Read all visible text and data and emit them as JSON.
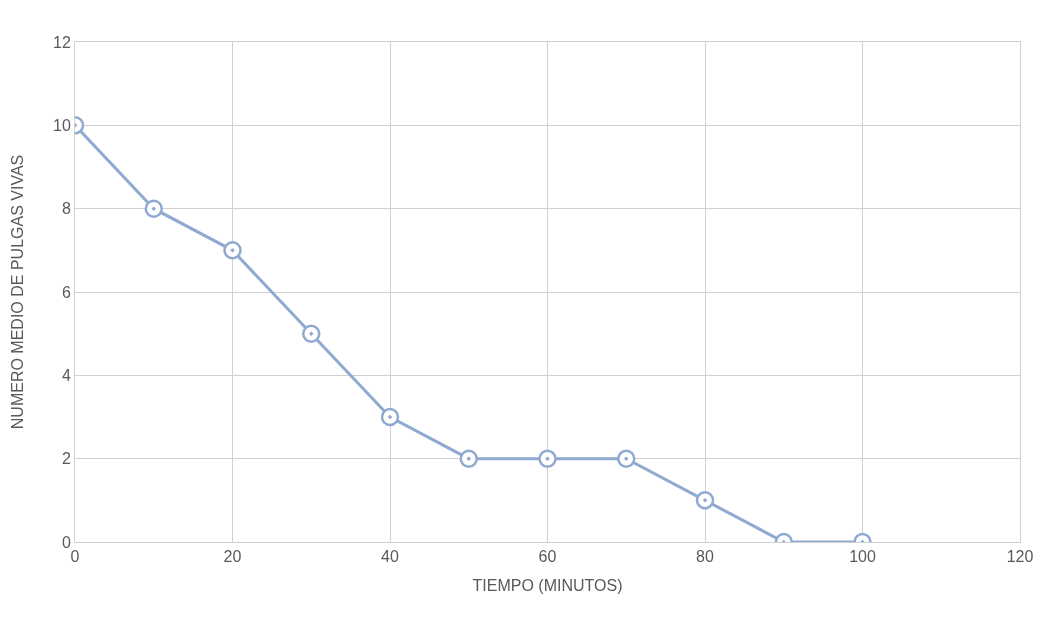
{
  "chart_data": {
    "type": "line",
    "xlabel": "TIEMPO (MINUTOS)",
    "ylabel": "NUMERO MEDIO DE PULGAS VIVAS",
    "x": [
      0,
      10,
      20,
      30,
      40,
      50,
      60,
      70,
      80,
      90,
      100
    ],
    "series": [
      {
        "color": "#8fa9d1",
        "values": [
          10,
          8,
          7,
          5,
          3,
          2,
          2,
          2,
          1,
          0,
          0
        ]
      }
    ],
    "xlim": [
      0,
      120
    ],
    "xticks": [
      0,
      20,
      40,
      60,
      80,
      100,
      120
    ],
    "ylim": [
      0,
      12
    ],
    "yticks": [
      0,
      2,
      4,
      6,
      8,
      10,
      12
    ],
    "grid": true,
    "marker": "circle",
    "line_style": "solid"
  }
}
